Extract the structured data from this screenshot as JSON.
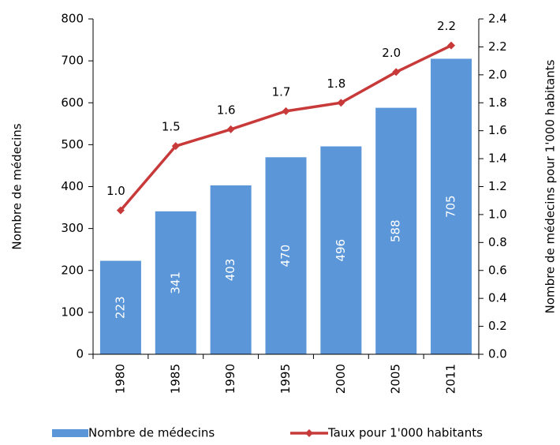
{
  "chart_data": {
    "type": "bar_line",
    "categories": [
      "1980",
      "1985",
      "1990",
      "1995",
      "2000",
      "2005",
      "2011"
    ],
    "ylabel": "Nombre de médecins",
    "y2label": "Nombre de médecins pour 1'000 habitants",
    "ylim": [
      0,
      800
    ],
    "yticks": [
      0,
      100,
      200,
      300,
      400,
      500,
      600,
      700,
      800
    ],
    "y2lim": [
      0,
      2.4
    ],
    "y2ticks": [
      {
        "value": 0,
        "label": "0.0"
      },
      0.2,
      0.4,
      0.6,
      0.8,
      {
        "value": 1,
        "label": "1.0"
      },
      1.2,
      1.4,
      1.6,
      1.8,
      {
        "value": 2,
        "label": "2.0"
      },
      2.2,
      2.4
    ],
    "grid": false,
    "legend": "bottom",
    "series": [
      {
        "name": "Nombre de médecins",
        "type": "bar",
        "color": "#5a96d8",
        "values": [
          223,
          341,
          403,
          470,
          496,
          588,
          705
        ]
      },
      {
        "name": "Taux pour 1'000 habitants",
        "type": "line",
        "color": "#c83a3a",
        "axis": "y2",
        "values": [
          1.03,
          1.49,
          1.61,
          1.74,
          1.8,
          2.02,
          2.21
        ],
        "value_labels": [
          "1.0",
          "1.5",
          "1.6",
          "1.7",
          "1.8",
          "2.0",
          "2.2"
        ]
      }
    ]
  }
}
